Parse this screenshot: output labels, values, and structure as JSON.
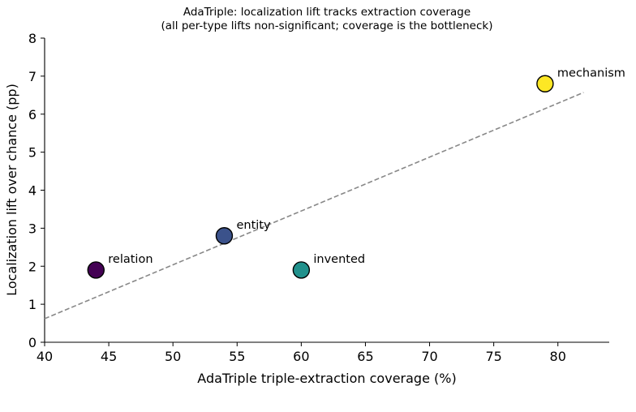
{
  "chart_data": {
    "type": "scatter",
    "title": "AdaTriple: localization lift tracks extraction coverage",
    "subtitle": "(all per-type lifts non-significant; coverage is the bottleneck)",
    "xlabel": "AdaTriple triple-extraction coverage (%)",
    "ylabel": "Localization lift over chance (pp)",
    "xlim": [
      40,
      84
    ],
    "ylim": [
      0,
      8
    ],
    "x_ticks": [
      40,
      45,
      50,
      55,
      60,
      65,
      70,
      75,
      80
    ],
    "y_ticks": [
      0,
      1,
      2,
      3,
      4,
      5,
      6,
      7,
      8
    ],
    "grid": false,
    "points": [
      {
        "label": "relation",
        "x": 44,
        "y": 1.9,
        "color": "#440154"
      },
      {
        "label": "entity",
        "x": 54,
        "y": 2.8,
        "color": "#3b528b"
      },
      {
        "label": "invented",
        "x": 60,
        "y": 1.9,
        "color": "#21918c"
      },
      {
        "label": "mechanism",
        "x": 79,
        "y": 6.8,
        "color": "#fde725"
      }
    ],
    "trendline": {
      "style": "dashed",
      "color": "#888888",
      "x_start": 40,
      "x_end": 82,
      "y_start": 0.62,
      "y_end": 6.57
    }
  }
}
